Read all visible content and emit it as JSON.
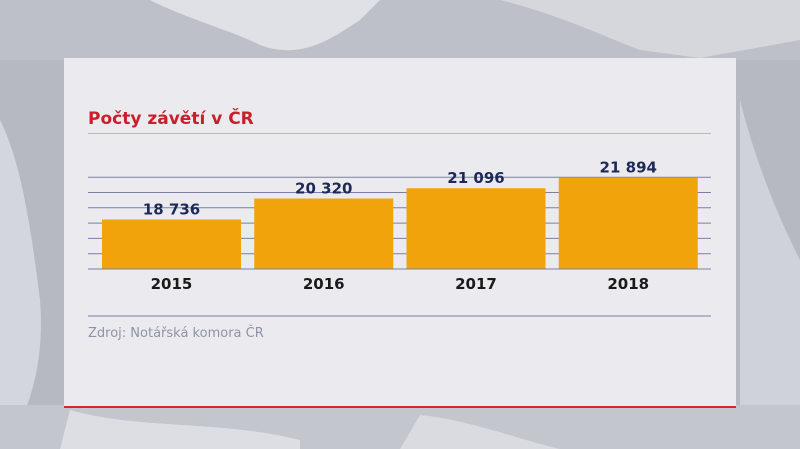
{
  "chart_data": {
    "type": "bar",
    "title": "Počty závětí v ČR",
    "categories": [
      "2015",
      "2016",
      "2017",
      "2018"
    ],
    "values": [
      18736,
      20320,
      21096,
      21894
    ],
    "value_labels": [
      "18 736",
      "20 320",
      "21 096",
      "21 894"
    ],
    "xlabel": "",
    "ylabel": "",
    "ylim": [
      15000,
      23000
    ],
    "grid": true,
    "legend": "none",
    "source": "Zdroj: Notářská komora ČR"
  },
  "colors": {
    "bar": "#f0a30a",
    "value_label": "#1d2a57",
    "title": "#c8202a",
    "grid": "#7a7fa4"
  }
}
